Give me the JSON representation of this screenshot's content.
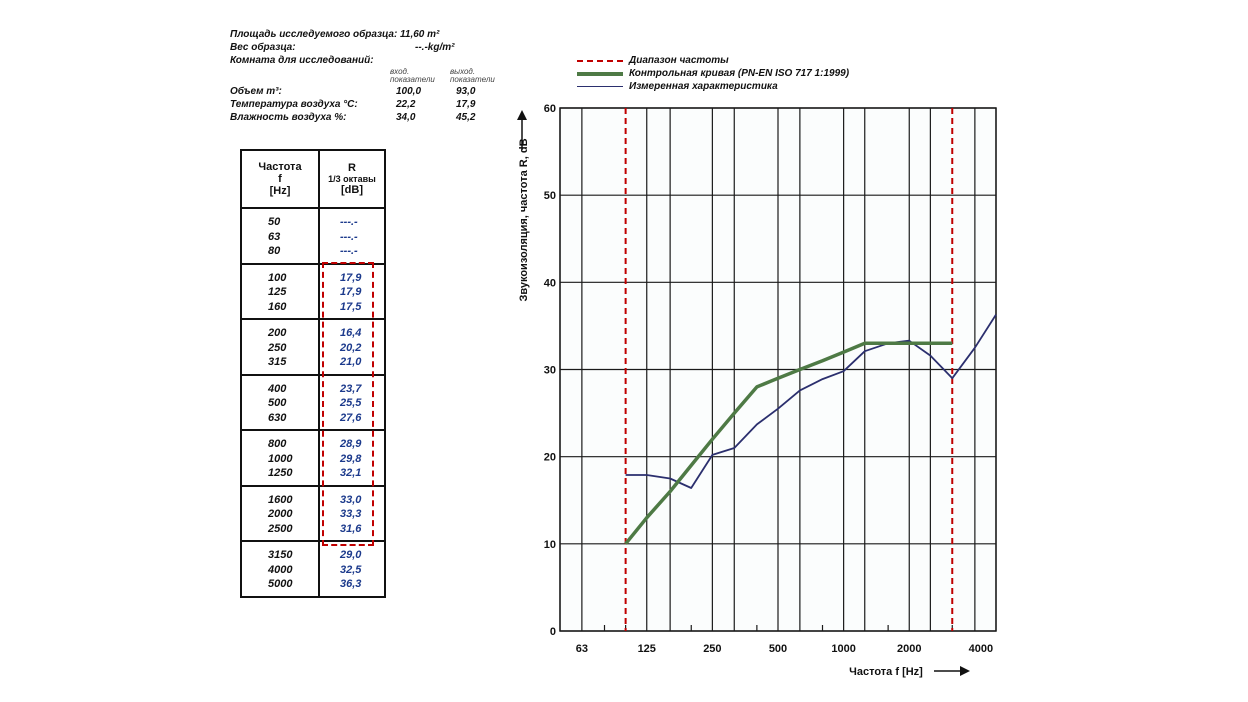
{
  "info": {
    "area": "Площадь исследуемого образца: 11,60 m²",
    "weight_label": "Вес образца:",
    "weight_value": "--.-kg/m²",
    "room": "Комната для исследований:",
    "col1_header": [
      "вход.",
      "показатели"
    ],
    "col2_header": [
      "выход.",
      "показатели"
    ],
    "rows": [
      {
        "label": "Объем m³:",
        "in": "100,0",
        "out": "93,0"
      },
      {
        "label": "Температура воздуха °C:",
        "in": "22,2",
        "out": "17,9"
      },
      {
        "label": "Влажность воздуха %:",
        "in": "34,0",
        "out": "45,2"
      }
    ]
  },
  "table": {
    "head_f": [
      "Частота",
      "f",
      "[Hz]"
    ],
    "head_r": [
      "R",
      "1/3 октавы",
      "[dB]"
    ],
    "groups": [
      {
        "f": [
          "50",
          "63",
          "80"
        ],
        "r": [
          "---.-",
          "---.-",
          "---.-"
        ]
      },
      {
        "f": [
          "100",
          "125",
          "160"
        ],
        "r": [
          "17,9",
          "17,9",
          "17,5"
        ]
      },
      {
        "f": [
          "200",
          "250",
          "315"
        ],
        "r": [
          "16,4",
          "20,2",
          "21,0"
        ]
      },
      {
        "f": [
          "400",
          "500",
          "630"
        ],
        "r": [
          "23,7",
          "25,5",
          "27,6"
        ]
      },
      {
        "f": [
          "800",
          "1000",
          "1250"
        ],
        "r": [
          "28,9",
          "29,8",
          "32,1"
        ]
      },
      {
        "f": [
          "1600",
          "2000",
          "2500"
        ],
        "r": [
          "33,0",
          "33,3",
          "31,6"
        ]
      },
      {
        "f": [
          "3150",
          "4000",
          "5000"
        ],
        "r": [
          "29,0",
          "32,5",
          "36,3"
        ]
      }
    ]
  },
  "legend": [
    {
      "label": "Диапазон частоты",
      "color": "#c00000",
      "style": "dashed"
    },
    {
      "label": "Контрольная кривая (PN-EN ISO 717 1:1999)",
      "color": "#4e7a45",
      "style": "thick"
    },
    {
      "label": "Измеренная характеристика",
      "color": "#2b2f6e",
      "style": "thin"
    }
  ],
  "chart_data": {
    "type": "line",
    "xlabel": "Частота f [Hz]",
    "ylabel": "Звукоизоляция, частота R, dB",
    "ylim": [
      0,
      60
    ],
    "yticks": [
      "0",
      "10",
      "20",
      "30",
      "40",
      "50",
      "60"
    ],
    "xticks": [
      "63",
      "125",
      "250",
      "500",
      "1000",
      "2000",
      "4000"
    ],
    "x": [
      100,
      125,
      160,
      200,
      250,
      315,
      400,
      500,
      630,
      800,
      1000,
      1250,
      1600,
      2000,
      2500,
      3150,
      4000,
      5000
    ],
    "range_lines": [
      100,
      3150
    ],
    "series": [
      {
        "name": "Измеренная характеристика",
        "color": "#2b2f6e",
        "values": [
          17.9,
          17.9,
          17.5,
          16.4,
          20.2,
          21.0,
          23.7,
          25.5,
          27.6,
          28.9,
          29.8,
          32.1,
          33.0,
          33.3,
          31.6,
          29.0,
          32.5,
          36.3
        ]
      },
      {
        "name": "Контрольная кривая (PN-EN ISO 717 1:1999)",
        "color": "#4e7a45",
        "x": [
          100,
          125,
          160,
          200,
          250,
          315,
          400,
          500,
          630,
          800,
          1000,
          1250,
          1600,
          2000,
          2500,
          3150
        ],
        "values": [
          10,
          13,
          16,
          19,
          22,
          25,
          28,
          29,
          30,
          31,
          32,
          33,
          33,
          33,
          33,
          33
        ]
      }
    ]
  }
}
